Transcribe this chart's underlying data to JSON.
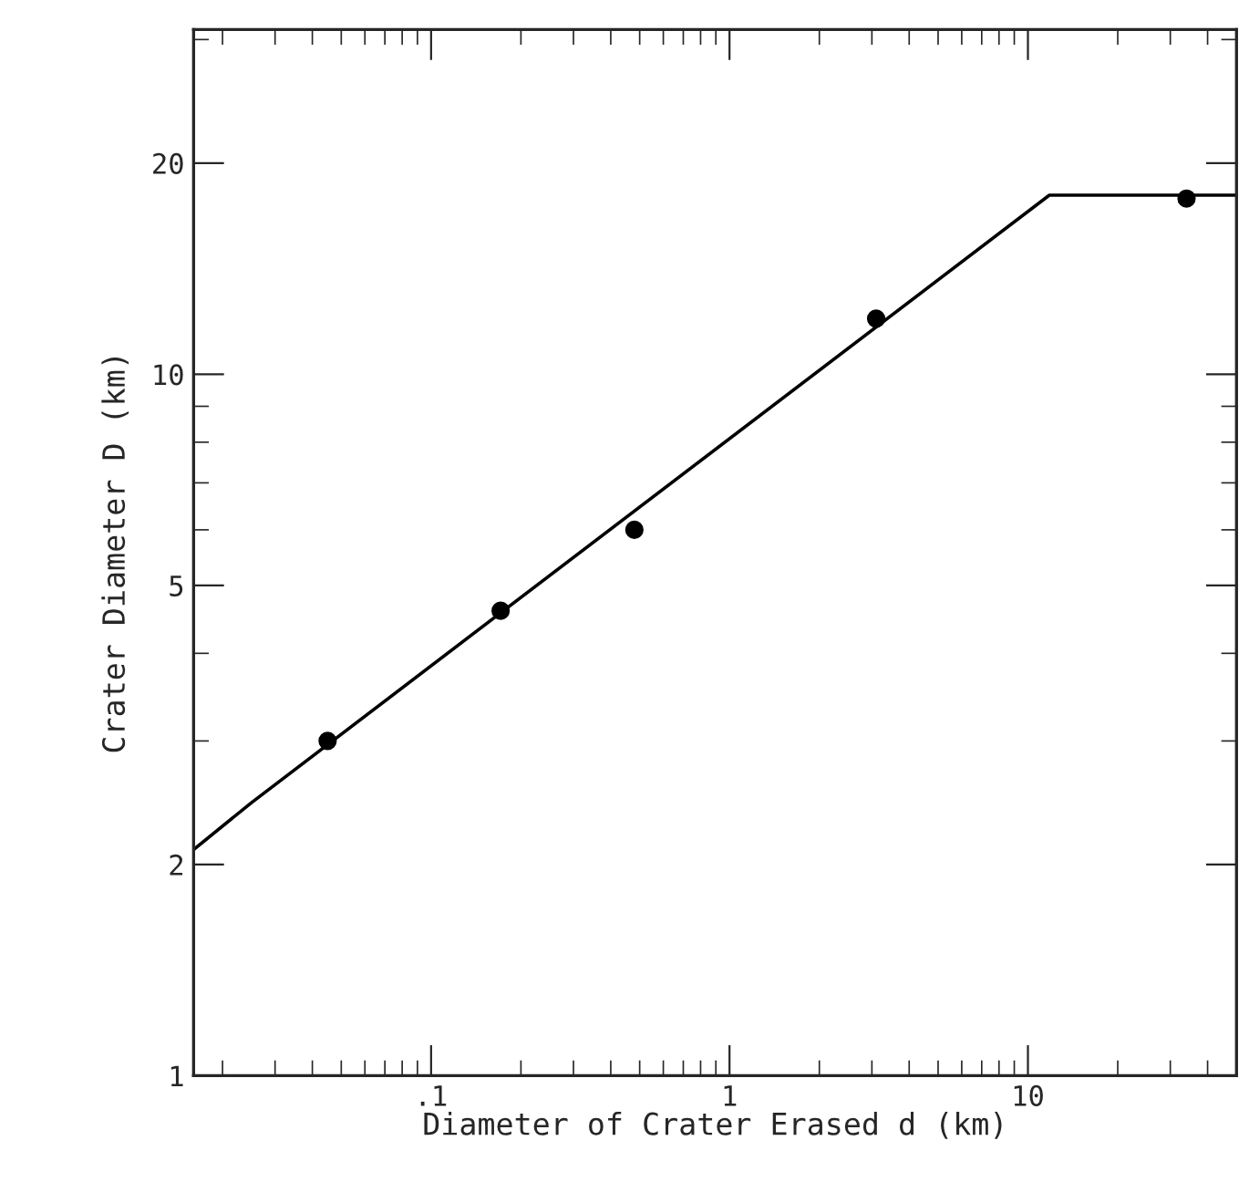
{
  "chart_data": {
    "type": "scatter",
    "xlabel": "Diameter of Crater Erased d (km)",
    "ylabel": "Crater Diameter D (km)",
    "log": "xy",
    "xlim": [
      0.016,
      50
    ],
    "xticks": [
      {
        "value": 0.1,
        "label": ".1"
      },
      1,
      10
    ],
    "ylim": [
      1,
      31
    ],
    "yticks": [
      1,
      2,
      5,
      10,
      20
    ],
    "grid": false,
    "legend": false,
    "series": [
      {
        "marker": "circle",
        "color": "#000000",
        "x": [
          0.045,
          0.171,
          0.48,
          3.1,
          34
        ],
        "values": [
          3.0,
          4.6,
          6.0,
          12.0,
          17.8
        ]
      },
      {
        "type": "line",
        "color": "#000000",
        "marker": "none",
        "line_style": "solid",
        "x": [
          0.016,
          0.025,
          11.8,
          50
        ],
        "values": [
          2.1,
          2.45,
          18,
          18
        ]
      }
    ]
  }
}
